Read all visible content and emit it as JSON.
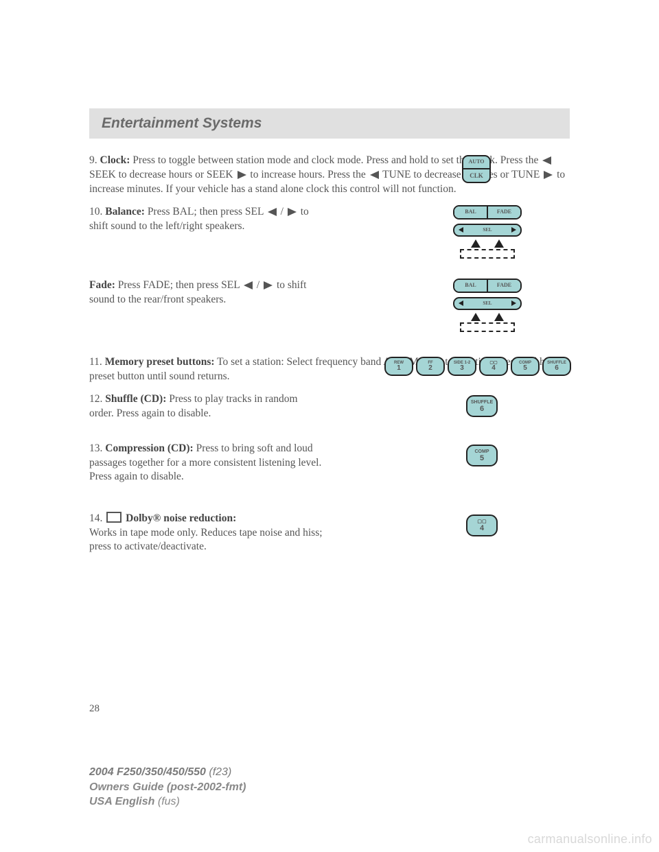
{
  "header": {
    "title": "Entertainment Systems"
  },
  "sections": {
    "clock": {
      "num": "9.",
      "label": "Clock:",
      "t1": " Press to toggle between station mode and clock mode. Press and hold to set the clock. Press the ",
      "t2": " SEEK to decrease hours or SEEK ",
      "t3": " to increase hours. Press the ",
      "t4": " TUNE to decrease minutes or TUNE ",
      "t5": " to increase minutes. If your vehicle has a stand alone clock this control will not function.",
      "btn_top": "AUTO",
      "btn_bot": "CLK"
    },
    "balance": {
      "num": "10.",
      "label": "Balance:",
      "t1": " Press BAL; then press SEL ",
      "t2": " to shift sound to the left/right speakers.",
      "bf_bal": "BAL",
      "bf_fade": "FADE",
      "bf_sel": "SEL"
    },
    "fade": {
      "label": "Fade:",
      "t1": " Press FADE; then press SEL ",
      "t2": " to shift sound to the rear/front speakers."
    },
    "preset": {
      "num": "11.",
      "label": "Memory preset buttons:",
      "t1": " To set a station: Select frequency band AM/FM, tune to a station, press and hold a preset button until sound returns.",
      "buttons": [
        {
          "top": "REW",
          "num": "1"
        },
        {
          "top": "FF",
          "num": "2"
        },
        {
          "top": "SIDE 1-2",
          "num": "3"
        },
        {
          "top": "▢▢",
          "num": "4"
        },
        {
          "top": "COMP",
          "num": "5"
        },
        {
          "top": "SHUFFLE",
          "num": "6"
        }
      ]
    },
    "shuffle": {
      "num": "12.",
      "label": "Shuffle (CD):",
      "t1": " Press to play tracks in random order. Press again to disable.",
      "btn_top": "SHUFFLE",
      "btn_num": "6"
    },
    "comp": {
      "num": "13.",
      "label": "Compression (CD):",
      "t1": " Press to bring soft and loud passages together for a more consistent listening level. Press again to disable.",
      "btn_top": "COMP",
      "btn_num": "5"
    },
    "dolby": {
      "num": "14.",
      "label": " Dolby® noise reduction:",
      "t1": "Works in tape mode only. Reduces tape noise and hiss; press to activate/deactivate.",
      "btn_top": "▢▢",
      "btn_num": "4"
    }
  },
  "page_number": "28",
  "footer": {
    "l1a": "2004 F250/350/450/550",
    "l1b": " (f23)",
    "l2a": "Owners Guide (post-2002-fmt)",
    "l3a": "USA English",
    "l3b": " (fus)"
  },
  "watermark": "carmanualsonline.info",
  "colors": {
    "button_bg": "#a5d5d5",
    "header_bg": "#e0e0e0"
  }
}
